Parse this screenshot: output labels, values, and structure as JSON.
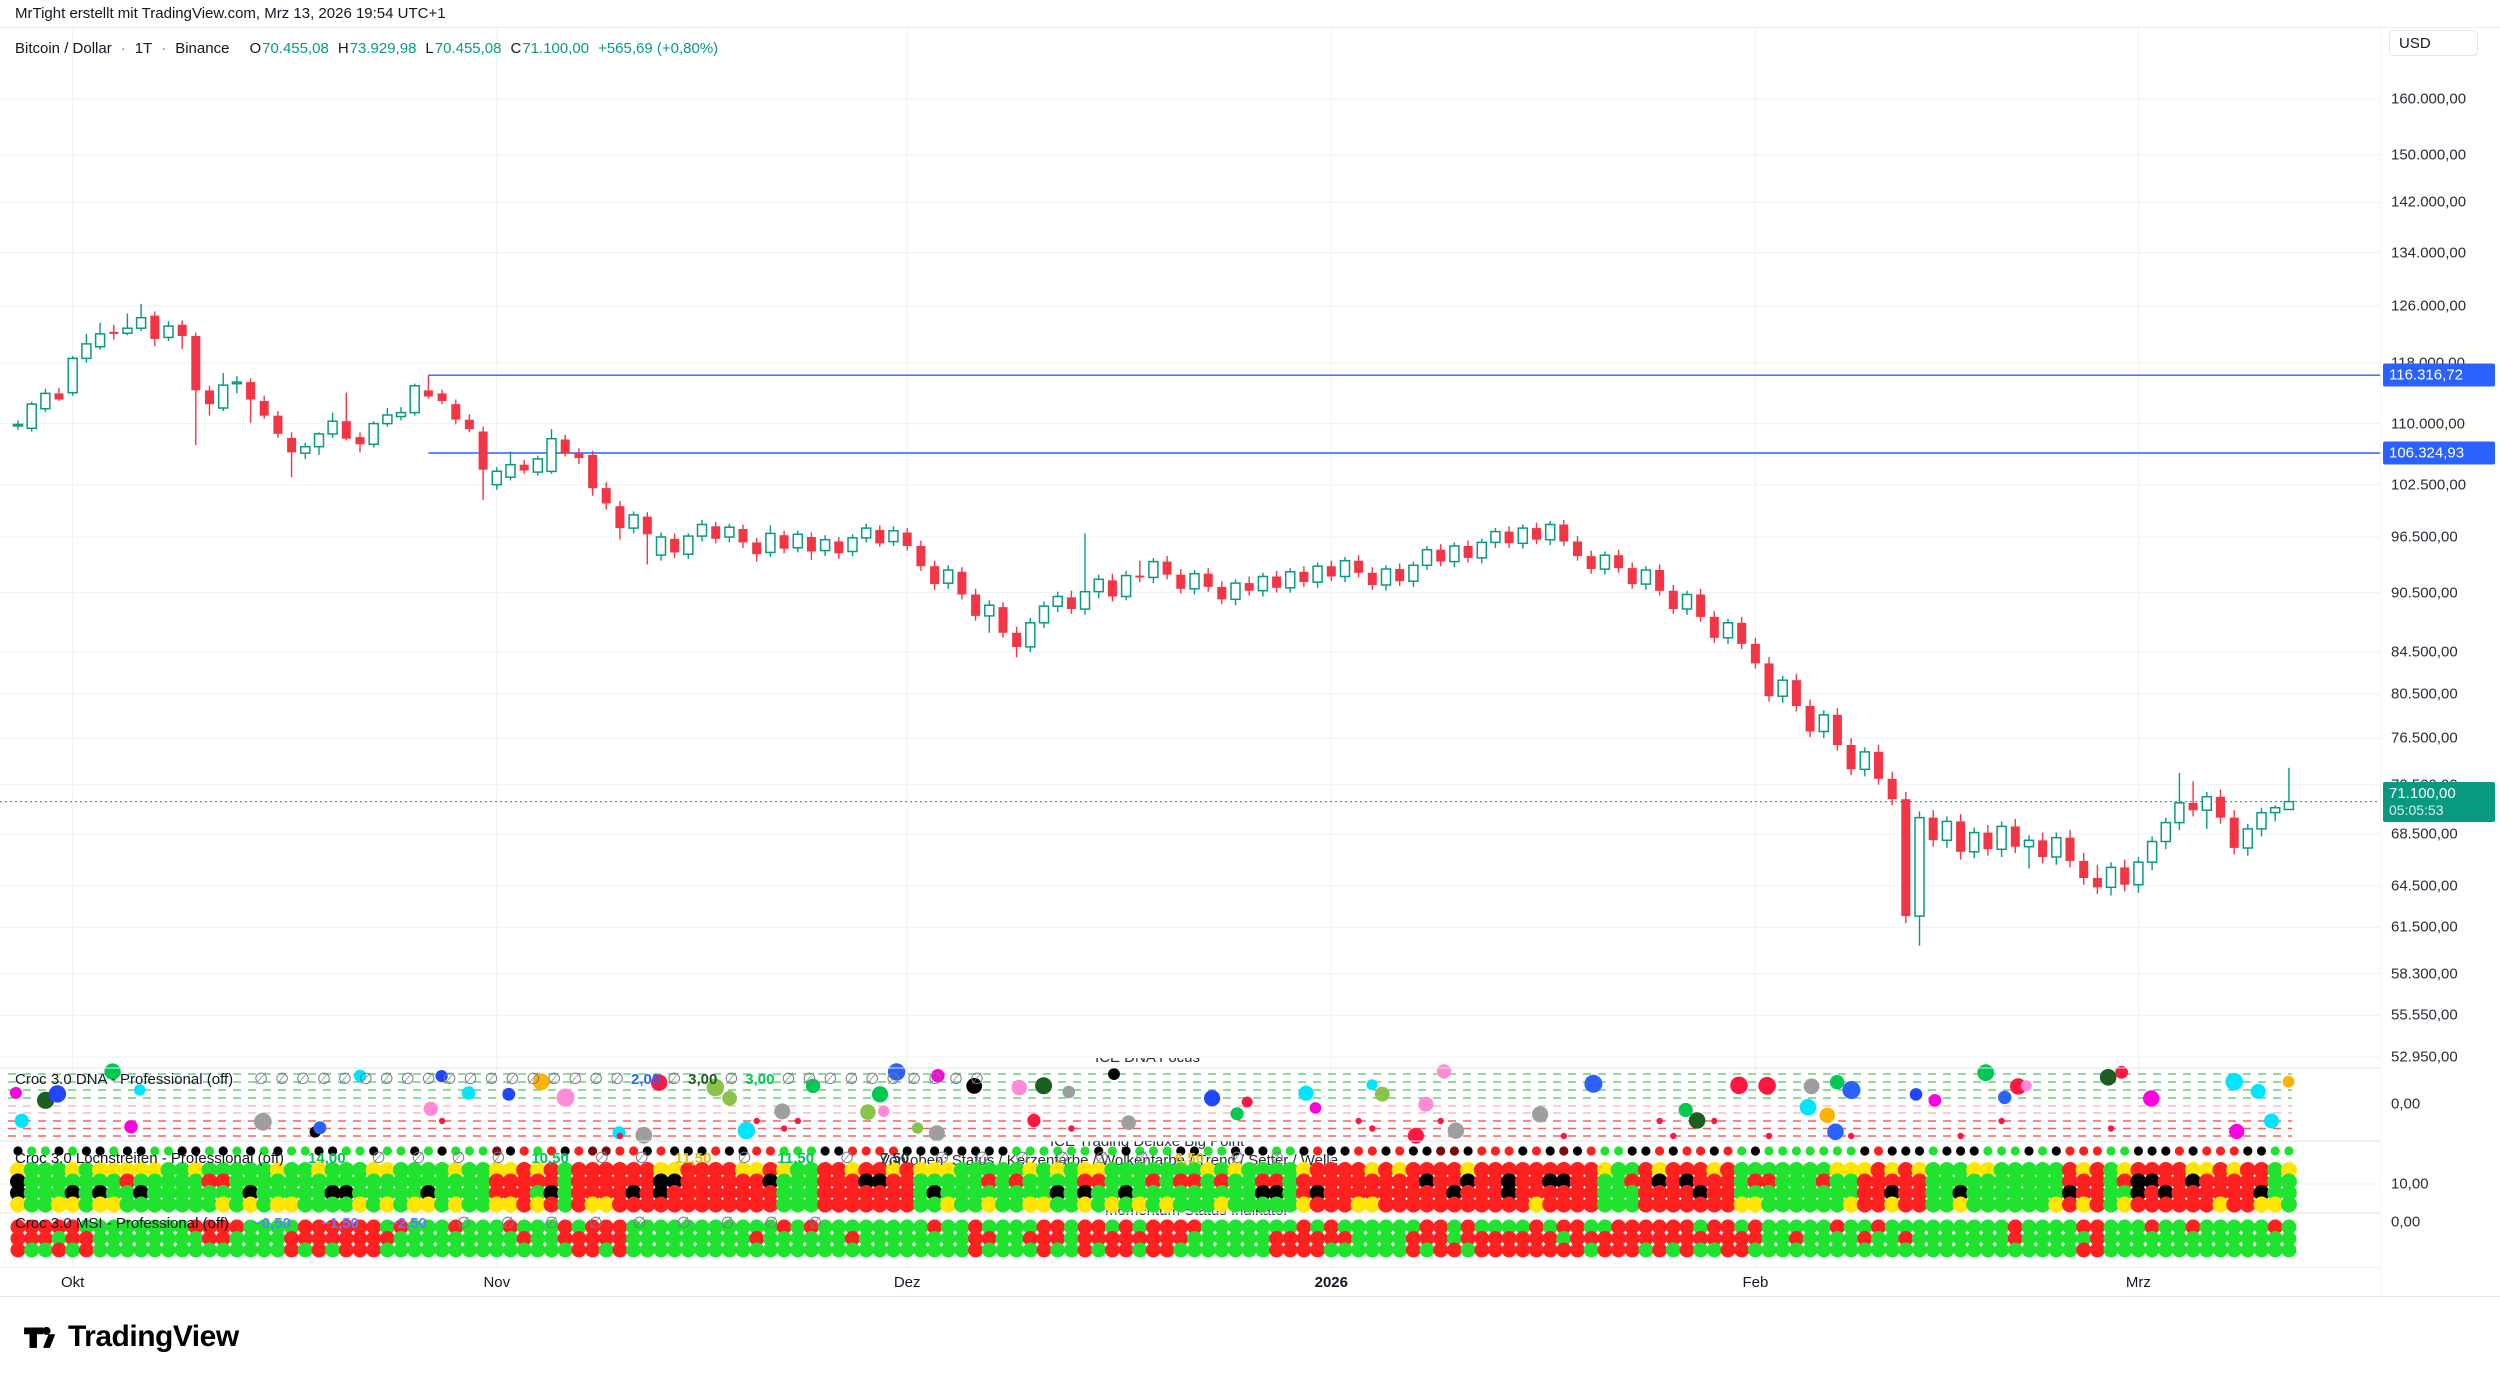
{
  "header": {
    "title": "MrTight erstellt mit TradingView.com, Mrz 13, 2026 19:54 UTC+1"
  },
  "legend": {
    "symbol": "Bitcoin / Dollar",
    "separator": "·",
    "interval": "1T",
    "exchange": "Binance",
    "o_label": "O",
    "o": "70.455,08",
    "h_label": "H",
    "h": "73.929,98",
    "l_label": "L",
    "l": "70.455,08",
    "c_label": "C",
    "c": "71.100,00",
    "change": "+565,69 (+0,80%)"
  },
  "axis": {
    "currency": "USD",
    "tick_labels": [
      "160.000,00",
      "150.000,00",
      "142.000,00",
      "134.000,00",
      "126.000,00",
      "118.000,00",
      "110.000,00",
      "102.500,00",
      "96.500,00",
      "90.500,00",
      "84.500,00",
      "80.500,00",
      "76.500,00",
      "72.500,00",
      "68.500,00",
      "64.500,00",
      "61.500,00",
      "58.300,00",
      "55.550,00",
      "52.950,00"
    ],
    "tick_values": [
      160000,
      150000,
      142000,
      134000,
      126000,
      118000,
      110000,
      102500,
      96500,
      90500,
      84500,
      80500,
      76500,
      72500,
      68500,
      64500,
      61500,
      58300,
      55550,
      52950
    ],
    "pane_tick_labels": [
      "0,00",
      "10,00",
      "0,00"
    ]
  },
  "chart_data": {
    "type": "candlestick",
    "title": "Bitcoin / Dollar · 1T · Binance",
    "scale": "log",
    "grid": true,
    "price_unit": 1000,
    "up_color": "#089981",
    "down_color": "#F23645",
    "x_axis": {
      "labels": [
        "Okt",
        "Nov",
        "Dez",
        "2026",
        "Feb",
        "Mrz"
      ],
      "label_indices": [
        4,
        35,
        65,
        96,
        127,
        155
      ]
    },
    "y_axis_range": [
      52950,
      165000
    ],
    "current_bar": {
      "open": 70455.08,
      "high": 73929.98,
      "low": 70455.08,
      "close": 71100.0,
      "change": "+565,69 (+0,80%)"
    },
    "levels": [
      {
        "value": 116316.72,
        "label": "116.316,72",
        "color": "#2962FF",
        "style": "solid",
        "start_index": 30
      },
      {
        "value": 106324.93,
        "label": "106.324,93",
        "color": "#2962FF",
        "style": "solid",
        "start_index": 30
      },
      {
        "value": 71100,
        "label": "71.100,00",
        "countdown": "05:05:53",
        "color": "#089981",
        "style": "dotted"
      }
    ],
    "candles": [
      [
        109.8,
        110.4,
        109.2,
        109.9
      ],
      [
        109.4,
        112.8,
        109.0,
        112.5
      ],
      [
        111.9,
        114.5,
        111.5,
        113.9
      ],
      [
        113.9,
        114.6,
        112.9,
        113.1
      ],
      [
        114.0,
        118.9,
        113.6,
        118.6
      ],
      [
        118.6,
        122.0,
        118.0,
        120.6
      ],
      [
        120.2,
        123.6,
        119.8,
        122.0
      ],
      [
        122.3,
        123.3,
        121.2,
        122.0
      ],
      [
        122.1,
        124.9,
        121.8,
        122.8
      ],
      [
        122.8,
        126.3,
        122.4,
        124.3
      ],
      [
        124.6,
        125.2,
        120.3,
        121.3
      ],
      [
        121.5,
        123.8,
        121.0,
        123.1
      ],
      [
        123.3,
        123.9,
        119.9,
        121.7
      ],
      [
        121.7,
        122.2,
        107.3,
        114.3
      ],
      [
        114.3,
        114.9,
        111.0,
        112.5
      ],
      [
        112.0,
        116.6,
        111.6,
        115.0
      ],
      [
        115.2,
        116.2,
        113.9,
        115.4
      ],
      [
        115.4,
        115.9,
        110.1,
        113.1
      ],
      [
        112.9,
        113.6,
        110.6,
        111.0
      ],
      [
        111.0,
        111.6,
        108.2,
        108.7
      ],
      [
        108.2,
        108.9,
        103.4,
        106.4
      ],
      [
        106.3,
        107.6,
        105.6,
        107.1
      ],
      [
        107.1,
        108.9,
        106.1,
        108.7
      ],
      [
        108.7,
        111.4,
        108.2,
        110.3
      ],
      [
        110.3,
        114.0,
        107.9,
        108.1
      ],
      [
        108.3,
        108.9,
        106.4,
        107.4
      ],
      [
        107.4,
        110.3,
        107.0,
        110.0
      ],
      [
        110.0,
        112.0,
        109.6,
        111.1
      ],
      [
        110.9,
        112.1,
        110.4,
        111.4
      ],
      [
        111.4,
        115.2,
        111.0,
        114.9
      ],
      [
        114.3,
        116.3,
        113.2,
        113.5
      ],
      [
        113.9,
        114.4,
        112.5,
        112.9
      ],
      [
        112.5,
        113.1,
        109.9,
        110.5
      ],
      [
        110.5,
        111.2,
        108.9,
        109.3
      ],
      [
        109.0,
        109.6,
        100.7,
        104.3
      ],
      [
        102.5,
        104.6,
        101.9,
        104.1
      ],
      [
        103.4,
        106.5,
        103.0,
        104.9
      ],
      [
        104.9,
        105.5,
        103.8,
        104.2
      ],
      [
        104.0,
        106.0,
        103.6,
        105.6
      ],
      [
        104.1,
        109.3,
        103.8,
        108.1
      ],
      [
        108.0,
        108.6,
        105.9,
        106.3
      ],
      [
        106.3,
        106.9,
        105.0,
        105.7
      ],
      [
        106.1,
        106.6,
        101.2,
        102.1
      ],
      [
        102.1,
        102.8,
        99.6,
        100.3
      ],
      [
        100.0,
        100.6,
        96.2,
        97.5
      ],
      [
        97.5,
        99.4,
        96.9,
        99.0
      ],
      [
        98.8,
        99.3,
        93.5,
        96.8
      ],
      [
        94.5,
        97.0,
        93.9,
        96.5
      ],
      [
        96.3,
        96.9,
        94.2,
        94.8
      ],
      [
        94.6,
        96.9,
        94.1,
        96.6
      ],
      [
        96.6,
        98.4,
        96.0,
        97.9
      ],
      [
        97.7,
        98.2,
        95.8,
        96.3
      ],
      [
        96.5,
        98.0,
        95.9,
        97.6
      ],
      [
        97.4,
        97.9,
        95.3,
        95.9
      ],
      [
        95.9,
        96.4,
        93.8,
        94.6
      ],
      [
        94.8,
        97.8,
        94.3,
        96.9
      ],
      [
        96.7,
        97.2,
        94.7,
        95.2
      ],
      [
        95.3,
        97.2,
        94.8,
        96.8
      ],
      [
        96.5,
        97.0,
        94.0,
        94.9
      ],
      [
        95.0,
        96.7,
        94.4,
        96.2
      ],
      [
        96.0,
        96.5,
        94.1,
        94.7
      ],
      [
        94.9,
        96.8,
        94.4,
        96.4
      ],
      [
        96.4,
        98.0,
        95.9,
        97.5
      ],
      [
        97.3,
        97.8,
        95.4,
        95.8
      ],
      [
        96.0,
        97.7,
        95.5,
        97.2
      ],
      [
        97.0,
        97.5,
        95.0,
        95.5
      ],
      [
        95.5,
        96.1,
        92.8,
        93.3
      ],
      [
        93.3,
        93.9,
        90.8,
        91.4
      ],
      [
        91.5,
        93.4,
        90.9,
        92.9
      ],
      [
        92.7,
        93.2,
        89.8,
        90.3
      ],
      [
        90.3,
        90.9,
        87.6,
        88.1
      ],
      [
        88.1,
        89.7,
        86.4,
        89.2
      ],
      [
        89.0,
        89.5,
        85.9,
        86.4
      ],
      [
        86.4,
        87.0,
        84.0,
        85.0
      ],
      [
        85.0,
        87.9,
        84.5,
        87.4
      ],
      [
        87.4,
        89.6,
        86.9,
        89.1
      ],
      [
        89.1,
        90.6,
        88.5,
        90.1
      ],
      [
        90.0,
        90.7,
        88.3,
        88.8
      ],
      [
        88.8,
        96.9,
        88.2,
        90.6
      ],
      [
        90.6,
        92.4,
        89.9,
        91.9
      ],
      [
        91.8,
        92.5,
        89.6,
        90.1
      ],
      [
        90.1,
        92.8,
        89.7,
        92.3
      ],
      [
        92.3,
        93.9,
        91.6,
        92.1
      ],
      [
        92.1,
        94.2,
        91.5,
        93.8
      ],
      [
        93.8,
        94.4,
        91.9,
        92.4
      ],
      [
        92.4,
        93.0,
        90.4,
        90.9
      ],
      [
        90.9,
        92.9,
        90.3,
        92.5
      ],
      [
        92.5,
        93.1,
        90.6,
        91.1
      ],
      [
        91.1,
        91.7,
        89.3,
        89.8
      ],
      [
        89.8,
        91.9,
        89.2,
        91.5
      ],
      [
        91.5,
        92.2,
        90.2,
        90.7
      ],
      [
        90.7,
        92.6,
        90.1,
        92.2
      ],
      [
        92.2,
        92.8,
        90.5,
        91.0
      ],
      [
        91.0,
        93.1,
        90.5,
        92.7
      ],
      [
        92.7,
        93.3,
        91.1,
        91.6
      ],
      [
        91.6,
        93.7,
        91.0,
        93.3
      ],
      [
        93.3,
        93.9,
        91.7,
        92.2
      ],
      [
        92.2,
        94.3,
        91.6,
        93.9
      ],
      [
        93.9,
        94.5,
        92.1,
        92.6
      ],
      [
        92.6,
        93.2,
        90.8,
        91.3
      ],
      [
        91.3,
        93.4,
        90.7,
        93.0
      ],
      [
        93.0,
        93.6,
        91.2,
        91.7
      ],
      [
        91.7,
        93.8,
        91.1,
        93.4
      ],
      [
        93.4,
        95.5,
        92.9,
        95.1
      ],
      [
        95.1,
        95.7,
        93.3,
        93.8
      ],
      [
        93.8,
        95.9,
        93.2,
        95.5
      ],
      [
        95.5,
        96.1,
        93.7,
        94.2
      ],
      [
        94.2,
        96.3,
        93.6,
        95.9
      ],
      [
        95.9,
        97.5,
        95.3,
        97.1
      ],
      [
        97.1,
        97.7,
        95.3,
        95.8
      ],
      [
        95.8,
        97.9,
        95.2,
        97.5
      ],
      [
        97.5,
        98.1,
        95.7,
        96.2
      ],
      [
        96.2,
        98.3,
        95.6,
        97.9
      ],
      [
        97.9,
        98.4,
        95.5,
        96.0
      ],
      [
        96.0,
        96.6,
        93.9,
        94.4
      ],
      [
        94.4,
        95.0,
        92.5,
        93.0
      ],
      [
        93.0,
        94.9,
        92.4,
        94.5
      ],
      [
        94.5,
        95.1,
        92.6,
        93.1
      ],
      [
        93.1,
        93.7,
        90.9,
        91.4
      ],
      [
        91.4,
        93.3,
        90.8,
        92.9
      ],
      [
        92.9,
        93.5,
        90.2,
        90.7
      ],
      [
        90.7,
        91.3,
        88.3,
        88.8
      ],
      [
        88.8,
        90.7,
        88.2,
        90.3
      ],
      [
        90.3,
        90.9,
        87.5,
        88.0
      ],
      [
        88.0,
        88.6,
        85.4,
        85.9
      ],
      [
        85.9,
        87.8,
        85.3,
        87.4
      ],
      [
        87.4,
        88.0,
        84.8,
        85.3
      ],
      [
        85.3,
        85.9,
        82.9,
        83.4
      ],
      [
        83.4,
        84.0,
        79.8,
        80.3
      ],
      [
        80.3,
        82.2,
        79.7,
        81.8
      ],
      [
        81.8,
        82.4,
        78.9,
        79.4
      ],
      [
        79.4,
        80.0,
        76.6,
        77.1
      ],
      [
        77.1,
        79.0,
        76.5,
        78.6
      ],
      [
        78.6,
        79.2,
        75.4,
        75.9
      ],
      [
        75.9,
        76.5,
        73.3,
        73.8
      ],
      [
        73.8,
        75.7,
        73.2,
        75.3
      ],
      [
        75.3,
        75.9,
        72.5,
        73.0
      ],
      [
        73.0,
        73.6,
        70.8,
        71.3
      ],
      [
        71.3,
        71.9,
        61.8,
        62.3
      ],
      [
        62.3,
        70.3,
        60.2,
        69.8
      ],
      [
        69.8,
        70.4,
        67.5,
        68.0
      ],
      [
        68.0,
        69.9,
        67.4,
        69.5
      ],
      [
        69.5,
        70.1,
        66.5,
        67.1
      ],
      [
        67.1,
        69.0,
        66.6,
        68.6
      ],
      [
        68.6,
        69.2,
        66.8,
        67.3
      ],
      [
        67.3,
        69.5,
        66.7,
        69.1
      ],
      [
        69.1,
        69.7,
        67.0,
        67.5
      ],
      [
        67.5,
        68.4,
        65.8,
        68.0
      ],
      [
        68.0,
        68.6,
        66.2,
        66.7
      ],
      [
        66.7,
        68.6,
        66.1,
        68.2
      ],
      [
        68.2,
        68.8,
        65.9,
        66.4
      ],
      [
        66.4,
        67.0,
        64.6,
        65.1
      ],
      [
        65.1,
        66.1,
        63.9,
        64.4
      ],
      [
        64.4,
        66.3,
        63.8,
        65.9
      ],
      [
        65.9,
        66.5,
        64.1,
        64.6
      ],
      [
        64.6,
        66.7,
        64.0,
        66.3
      ],
      [
        66.3,
        68.3,
        65.7,
        67.9
      ],
      [
        67.9,
        69.8,
        67.3,
        69.4
      ],
      [
        69.4,
        73.5,
        68.8,
        71.0
      ],
      [
        71.0,
        72.8,
        69.9,
        70.4
      ],
      [
        70.4,
        71.9,
        68.9,
        71.5
      ],
      [
        71.5,
        72.1,
        69.3,
        69.8
      ],
      [
        69.8,
        70.4,
        66.9,
        67.4
      ],
      [
        67.4,
        69.3,
        66.8,
        68.9
      ],
      [
        68.9,
        70.6,
        68.3,
        70.2
      ],
      [
        70.2,
        70.8,
        69.5,
        70.6
      ],
      [
        70.455,
        73.93,
        70.455,
        71.1
      ]
    ]
  },
  "indicators": [
    {
      "name": "Croc 3.0 DNA - Professional (off)",
      "axis_value": "0,00",
      "overlay_top": "ICE DNA Focus",
      "status": [
        {
          "t": "∅"
        },
        {
          "t": "∅"
        },
        {
          "t": "∅"
        },
        {
          "t": "∅"
        },
        {
          "t": "∅"
        },
        {
          "t": "∅"
        },
        {
          "t": "∅"
        },
        {
          "t": "∅"
        },
        {
          "t": "∅"
        },
        {
          "t": "∅"
        },
        {
          "t": "∅"
        },
        {
          "t": "∅"
        },
        {
          "t": "∅"
        },
        {
          "t": "∅"
        },
        {
          "t": "∅"
        },
        {
          "t": "∅"
        },
        {
          "t": "∅"
        },
        {
          "t": "∅"
        },
        {
          "t": "2,00",
          "c": "#2962FF"
        },
        {
          "t": "∅"
        },
        {
          "t": "3,00",
          "c": "#1B5E20"
        },
        {
          "t": "∅"
        },
        {
          "t": "3,00",
          "c": "#00C853"
        },
        {
          "t": "∅"
        },
        {
          "t": "∅"
        },
        {
          "t": "∅"
        },
        {
          "t": "∅"
        },
        {
          "t": "∅"
        },
        {
          "t": "∅"
        },
        {
          "t": "∅"
        },
        {
          "t": "∅"
        },
        {
          "t": "∅"
        },
        {
          "t": "∅"
        }
      ],
      "palette": [
        "#2146FF",
        "#00C853",
        "#1B5E20",
        "#FF00E1",
        "#00E5FF",
        "#FFB300",
        "#FF8AD8",
        "#000000",
        "#FF1744",
        "#9E9E9E",
        "#8BC34A",
        "#2962FF"
      ],
      "seed": 7
    },
    {
      "name": "Croc 3.0 Lochstreifen - Professional (off)",
      "axis_value": "10,00",
      "axis_value_bottom": "0,00",
      "overlays": [
        "ICE Trading Deluxe Big Point",
        "Von oben: Status / Kerzenfarbe / Wolkenfarbe / Trend / Setter / Welle",
        "Momentum Status Indikator"
      ],
      "status": [
        {
          "t": "14,00",
          "c": "#00C853"
        },
        {
          "t": "∅"
        },
        {
          "t": "∅"
        },
        {
          "t": "∅"
        },
        {
          "t": "∅"
        },
        {
          "t": "10,50",
          "c": "#00C853"
        },
        {
          "t": "∅"
        },
        {
          "t": "∅"
        },
        {
          "t": "11,50",
          "c": "#E6C400"
        },
        {
          "t": "∅"
        },
        {
          "t": "11,50",
          "c": "#00C853"
        },
        {
          "t": "∅"
        },
        {
          "t": "7,50",
          "c": "#2A2E39"
        },
        {
          "t": "∅"
        },
        {
          "t": "∅"
        },
        {
          "t": "∅"
        },
        {
          "t": "∅"
        },
        {
          "t": "∅"
        },
        {
          "t": "∅"
        },
        {
          "t": "6,50",
          "c": "#E6C400"
        },
        {
          "t": "∅"
        },
        {
          "t": "∅"
        }
      ],
      "dot_colors": {
        "red": "#FF2020",
        "green": "#1FE32F",
        "yellow": "#FFE500",
        "black": "#000000",
        "darkred": "#7A0C0C"
      },
      "seed": 13
    },
    {
      "name": "Croc 3.0 MSI - Professional (off)",
      "axis_value": "0,00",
      "status": [
        {
          "t": "−0,50",
          "c": "#5B7FFF"
        },
        {
          "t": "−1,50",
          "c": "#5B7FFF"
        },
        {
          "t": "−2,50",
          "c": "#5B7FFF"
        },
        {
          "t": "∅"
        },
        {
          "t": "∅"
        },
        {
          "t": "∅"
        },
        {
          "t": "∅"
        },
        {
          "t": "∅"
        },
        {
          "t": "∅"
        },
        {
          "t": "∅"
        },
        {
          "t": "∅"
        },
        {
          "t": "∅"
        }
      ],
      "dot_colors": {
        "red": "#FF2020",
        "green": "#1FE32F"
      },
      "seed": 21
    }
  ],
  "footer": {
    "logo_text": "TradingView"
  }
}
